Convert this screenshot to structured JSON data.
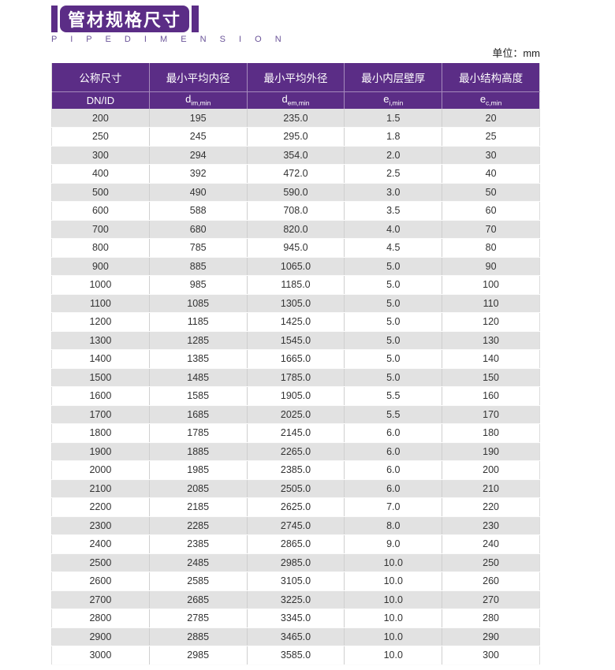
{
  "title": {
    "zh": "管材规格尺寸",
    "en": "P I P E   D I M E N S I O N"
  },
  "unit_label": "单位：mm",
  "colors": {
    "purple": "#5b2d86",
    "subtitle_purple": "#6b5499",
    "row_gray": "#e2e2e2",
    "cell_border": "#cfcfcf",
    "text": "#333333"
  },
  "table": {
    "header_row1": [
      "公称尺寸",
      "最小平均内径",
      "最小平均外径",
      "最小内层壁厚",
      "最小结构高度"
    ],
    "symbols": [
      {
        "base": "DN/ID",
        "sub": ""
      },
      {
        "base": "d",
        "sub": "im,min"
      },
      {
        "base": "d",
        "sub": "em,min"
      },
      {
        "base": "e",
        "sub": "i,min"
      },
      {
        "base": "e",
        "sub": "c,min"
      }
    ],
    "rows": [
      [
        "200",
        "195",
        "235.0",
        "1.5",
        "20"
      ],
      [
        "250",
        "245",
        "295.0",
        "1.8",
        "25"
      ],
      [
        "300",
        "294",
        "354.0",
        "2.0",
        "30"
      ],
      [
        "400",
        "392",
        "472.0",
        "2.5",
        "40"
      ],
      [
        "500",
        "490",
        "590.0",
        "3.0",
        "50"
      ],
      [
        "600",
        "588",
        "708.0",
        "3.5",
        "60"
      ],
      [
        "700",
        "680",
        "820.0",
        "4.0",
        "70"
      ],
      [
        "800",
        "785",
        "945.0",
        "4.5",
        "80"
      ],
      [
        "900",
        "885",
        "1065.0",
        "5.0",
        "90"
      ],
      [
        "1000",
        "985",
        "1185.0",
        "5.0",
        "100"
      ],
      [
        "1100",
        "1085",
        "1305.0",
        "5.0",
        "110"
      ],
      [
        "1200",
        "1185",
        "1425.0",
        "5.0",
        "120"
      ],
      [
        "1300",
        "1285",
        "1545.0",
        "5.0",
        "130"
      ],
      [
        "1400",
        "1385",
        "1665.0",
        "5.0",
        "140"
      ],
      [
        "1500",
        "1485",
        "1785.0",
        "5.0",
        "150"
      ],
      [
        "1600",
        "1585",
        "1905.0",
        "5.5",
        "160"
      ],
      [
        "1700",
        "1685",
        "2025.0",
        "5.5",
        "170"
      ],
      [
        "1800",
        "1785",
        "2145.0",
        "6.0",
        "180"
      ],
      [
        "1900",
        "1885",
        "2265.0",
        "6.0",
        "190"
      ],
      [
        "2000",
        "1985",
        "2385.0",
        "6.0",
        "200"
      ],
      [
        "2100",
        "2085",
        "2505.0",
        "6.0",
        "210"
      ],
      [
        "2200",
        "2185",
        "2625.0",
        "7.0",
        "220"
      ],
      [
        "2300",
        "2285",
        "2745.0",
        "8.0",
        "230"
      ],
      [
        "2400",
        "2385",
        "2865.0",
        "9.0",
        "240"
      ],
      [
        "2500",
        "2485",
        "2985.0",
        "10.0",
        "250"
      ],
      [
        "2600",
        "2585",
        "3105.0",
        "10.0",
        "260"
      ],
      [
        "2700",
        "2685",
        "3225.0",
        "10.0",
        "270"
      ],
      [
        "2800",
        "2785",
        "3345.0",
        "10.0",
        "280"
      ],
      [
        "2900",
        "2885",
        "3465.0",
        "10.0",
        "290"
      ],
      [
        "3000",
        "2985",
        "3585.0",
        "10.0",
        "300"
      ]
    ]
  }
}
